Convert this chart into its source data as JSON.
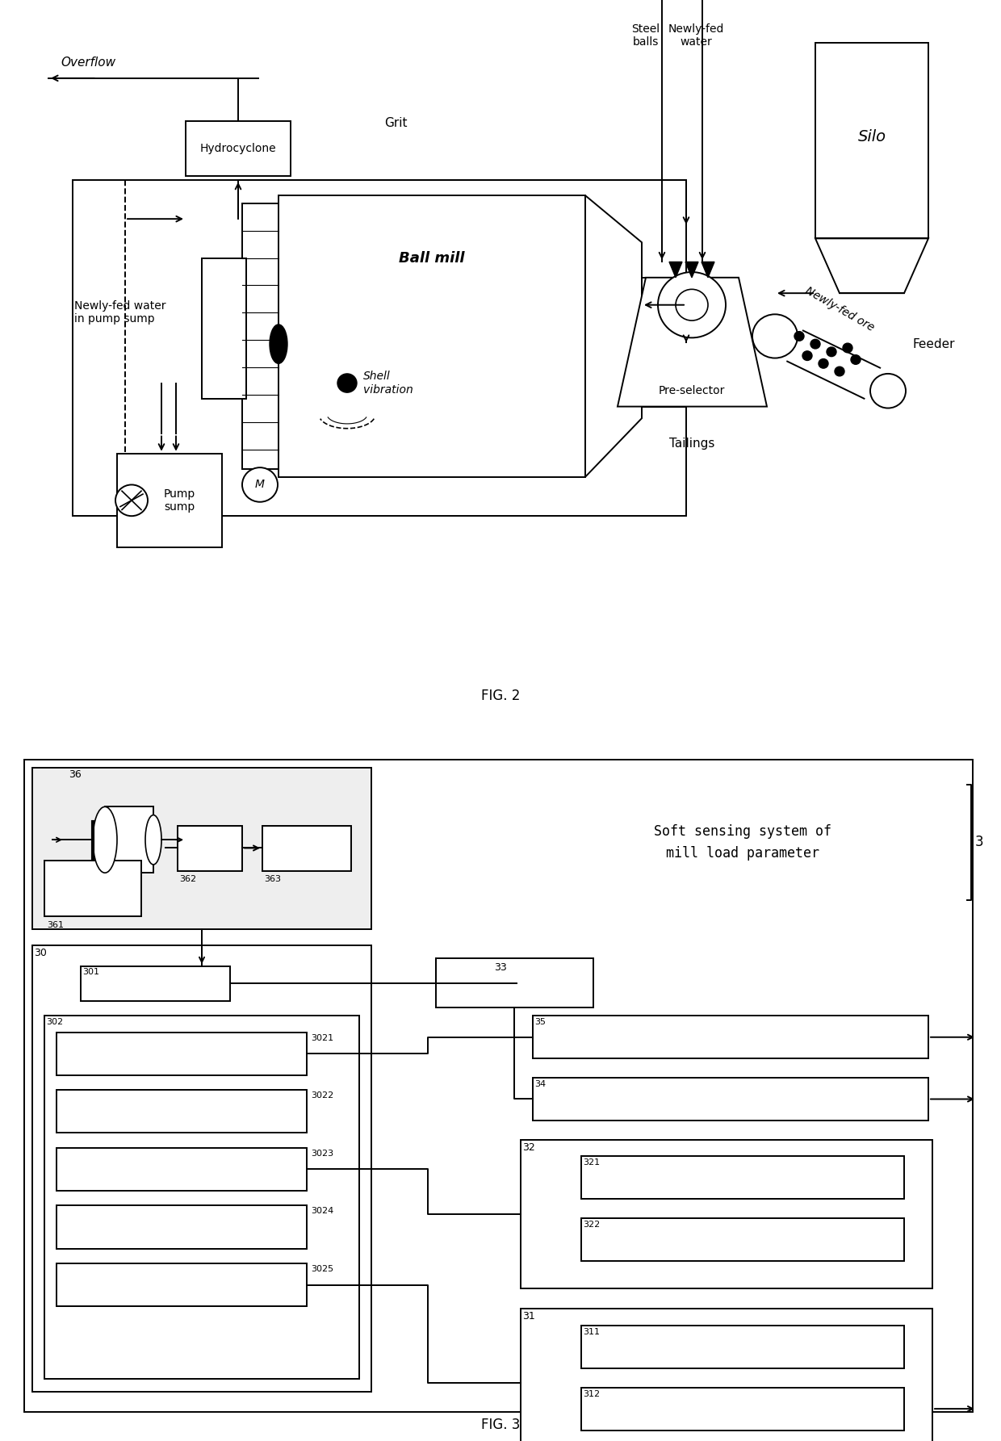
{
  "fig_width": 12.4,
  "fig_height": 17.85,
  "bg_color": "#ffffff",
  "fig2_label": "FIG. 2",
  "fig3_label": "FIG. 3",
  "soft_sensing_text": "Soft sensing system of\nmill load parameter",
  "label_3": "3",
  "labels": {
    "overflow": "Overflow",
    "hydrocyclone": "Hydrocyclone",
    "grit": "Grit",
    "steel_balls": "Steel\nballs",
    "newly_fed_water": "Newly-fed\nwater",
    "silo": "Silo",
    "newly_fed_water_pump": "Newly-fed water\nin pump sump",
    "ball_mill": "Ball mill",
    "shell_vibration": "Shell\nvibration",
    "pre_selector": "Pre-selector",
    "tailings": "Tailings",
    "feeder": "Feeder",
    "newly_fed_ore": "Newly-fed ore",
    "pump_sump": "Pump\nsump"
  }
}
